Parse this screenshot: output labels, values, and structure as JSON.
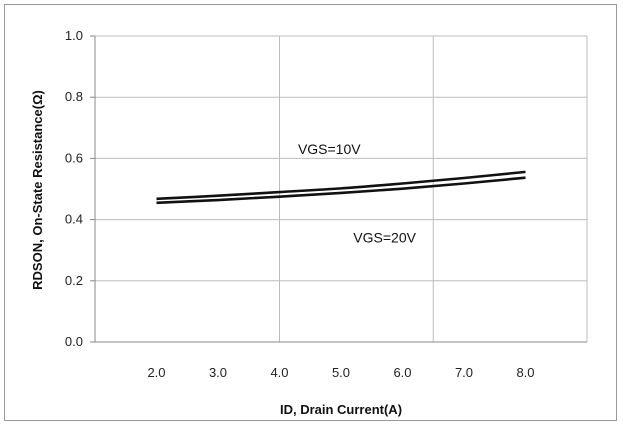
{
  "chart_data": {
    "type": "line",
    "xlabel": "ID, Drain Current(A)",
    "ylabel": "RDSON, On-State Resistance(Ω)",
    "xlim": [
      1.0,
      9.0
    ],
    "ylim": [
      0.0,
      1.0
    ],
    "x_ticks": [
      "2.0",
      "3.0",
      "4.0",
      "5.0",
      "6.0",
      "7.0",
      "8.0"
    ],
    "y_ticks": [
      "0.0",
      "0.2",
      "0.4",
      "0.6",
      "0.8",
      "1.0"
    ],
    "x_tick_values": [
      2,
      3,
      4,
      5,
      6,
      7,
      8
    ],
    "y_tick_values": [
      0,
      0.2,
      0.4,
      0.6,
      0.8,
      1.0
    ],
    "vertical_gridlines_at": [
      4,
      6.5,
      9
    ],
    "horizontal_grid": true,
    "series": [
      {
        "name": "VGS=10V",
        "x": [
          2,
          3,
          4,
          5,
          6,
          7,
          8
        ],
        "values": [
          0.468,
          0.478,
          0.49,
          0.502,
          0.518,
          0.536,
          0.556
        ]
      },
      {
        "name": "VGS=20V",
        "x": [
          2,
          3,
          4,
          5,
          6,
          7,
          8
        ],
        "values": [
          0.455,
          0.464,
          0.475,
          0.487,
          0.501,
          0.518,
          0.537
        ]
      }
    ],
    "annotations": [
      {
        "text": "VGS=10V",
        "x": 4.3,
        "y": 0.615
      },
      {
        "text": "VGS=20V",
        "x": 5.2,
        "y": 0.325
      }
    ],
    "line_color": "#111111",
    "grid_color": "#bdbdbd"
  }
}
